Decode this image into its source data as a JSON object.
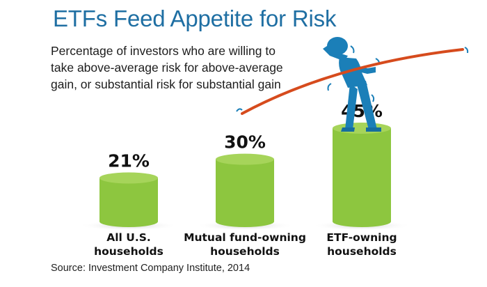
{
  "colors": {
    "title": "#1f6fa3",
    "bar_fill": "#8dc63f",
    "bar_top": "#a6d45a",
    "bar_side": "#7ab435",
    "curve": "#d64b1d",
    "figure": "#1b7fb8"
  },
  "icons": [
    "balancing-figure-icon"
  ],
  "chart_data": {
    "type": "bar",
    "title": "ETFs Feed Appetite for Risk",
    "subtitle": "Percentage of investors who are willing to take above-average risk for above-average gain, or substantial risk for substantial gain",
    "categories": [
      [
        "All U.S.",
        "households"
      ],
      [
        "Mutual fund-owning",
        "households"
      ],
      [
        "ETF-owning",
        "households"
      ]
    ],
    "values": [
      21,
      30,
      45
    ],
    "value_labels": [
      "21%",
      "30%",
      "45%"
    ],
    "unit": "%",
    "ylim": [
      0,
      45
    ],
    "grid": false,
    "source": "Source: Investment Company Institute, 2014"
  }
}
